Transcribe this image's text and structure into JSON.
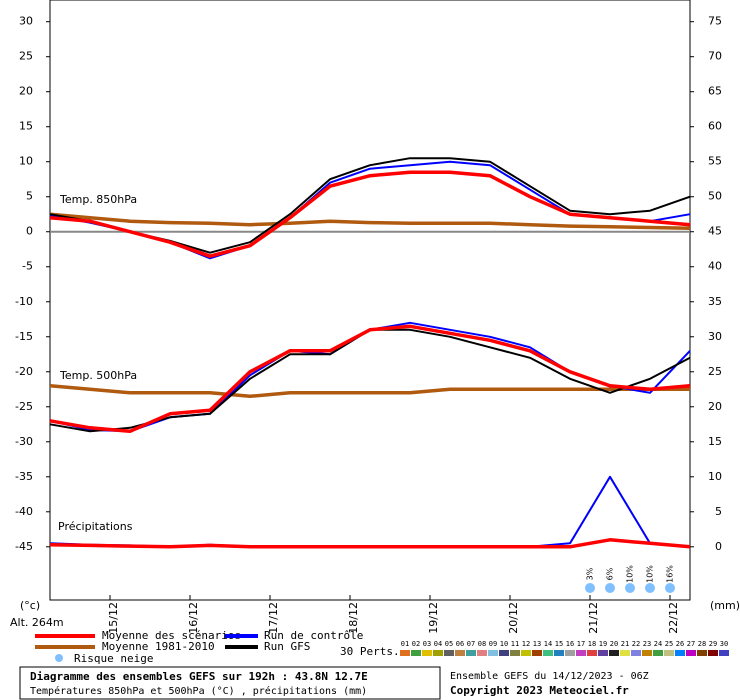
{
  "chart_data": {
    "type": "line",
    "x": [
      0,
      12,
      24,
      36,
      48,
      60,
      72,
      84,
      96,
      108,
      120,
      132,
      144,
      156,
      168,
      180,
      192
    ],
    "xlim": [
      0,
      192
    ],
    "xticks": [
      {
        "value": 18,
        "label": "15/12"
      },
      {
        "value": 42,
        "label": "16/12"
      },
      {
        "value": 66,
        "label": "17/12"
      },
      {
        "value": 90,
        "label": "18/12"
      },
      {
        "value": 114,
        "label": "19/12"
      },
      {
        "value": 138,
        "label": "20/12"
      },
      {
        "value": 162,
        "label": "21/12"
      },
      {
        "value": 186,
        "label": "22/12"
      }
    ],
    "ylim": [
      -52.6,
      33.1
    ],
    "yticks": [
      -45,
      -40,
      -35,
      -30,
      -25,
      -20,
      -15,
      -10,
      -5,
      0,
      5,
      10,
      15,
      20,
      25,
      30
    ],
    "y2lim": [
      -7.6,
      78.1
    ],
    "y2ticks": [
      0,
      5,
      10,
      15,
      20,
      25,
      30,
      35,
      40,
      45,
      50,
      55,
      60,
      65,
      70,
      75
    ],
    "y_label": "(°c)",
    "y2_label": "(mm)",
    "altitude": "Alt. 264m",
    "annotations": [
      "Temp. 850hPa",
      "Temp. 500hPa",
      "Précipitations"
    ],
    "series": [
      {
        "name": "Moyenne des scénarios",
        "color": "#ff0000",
        "t850": [
          2,
          1.5,
          0,
          -1.5,
          -3.5,
          -2,
          2,
          6.5,
          8,
          8.5,
          8.5,
          8,
          5,
          2.5,
          2,
          1.5,
          1
        ],
        "t500": [
          -27,
          -28,
          -28.5,
          -26,
          -25.5,
          -20,
          -17,
          -17,
          -14,
          -13.5,
          -14.5,
          -15.5,
          -17,
          -20,
          -22,
          -22.5,
          -22
        ],
        "precip": [
          0.3,
          0.2,
          0.1,
          0,
          0.2,
          0,
          0,
          0,
          0,
          0,
          0,
          0,
          0,
          0,
          1,
          0.5,
          0
        ]
      },
      {
        "name": "Moyenne 1981-2010",
        "color": "#b05a10",
        "t850": [
          2.5,
          2,
          1.5,
          1.3,
          1.2,
          1,
          1.2,
          1.5,
          1.3,
          1.2,
          1.2,
          1.2,
          1,
          0.8,
          0.7,
          0.6,
          0.5
        ],
        "t500": [
          -22,
          -22.5,
          -23,
          -23,
          -23,
          -23.5,
          -23,
          -23,
          -23,
          -23,
          -22.5,
          -22.5,
          -22.5,
          -22.5,
          -22.5,
          -22.5,
          -22.5
        ]
      },
      {
        "name": "Run de contrôle",
        "color": "#0000ff",
        "t850": [
          2.3,
          1.3,
          0,
          -1.5,
          -3.8,
          -2,
          2,
          7,
          9,
          9.5,
          10,
          9.5,
          6,
          2.5,
          2,
          1.5,
          2.5
        ],
        "t500": [
          -27,
          -28.3,
          -28.5,
          -26.5,
          -26,
          -20.5,
          -17,
          -17.5,
          -14,
          -13,
          -14,
          -15,
          -16.5,
          -20,
          -22,
          -23,
          -17
        ],
        "precip": [
          0.5,
          0.3,
          0.2,
          0,
          0.3,
          0,
          0,
          0,
          0,
          0,
          0,
          0,
          0,
          0.5,
          10,
          0.5,
          0
        ]
      },
      {
        "name": "Run GFS",
        "color": "#000000",
        "t850": [
          2.5,
          1.5,
          0,
          -1.3,
          -3,
          -1.5,
          2.5,
          7.5,
          9.5,
          10.5,
          10.5,
          10,
          6.5,
          3,
          2.5,
          3,
          5
        ],
        "t500": [
          -27.5,
          -28.5,
          -28,
          -26.5,
          -26,
          -21,
          -17.5,
          -17.5,
          -14,
          -14,
          -15,
          -16.5,
          -18,
          -21,
          -23,
          -21,
          -18
        ]
      }
    ],
    "snow": {
      "name": "Risque neige",
      "x": [
        162,
        168,
        174,
        180,
        186
      ],
      "labels": [
        "3%",
        "6%",
        "10%",
        "10%",
        "16%"
      ]
    },
    "perts": {
      "name": "30 Perts.",
      "labels": [
        "01",
        "02",
        "03",
        "04",
        "05",
        "06",
        "07",
        "08",
        "09",
        "10",
        "11",
        "12",
        "13",
        "14",
        "15",
        "16",
        "17",
        "18",
        "19",
        "20",
        "21",
        "22",
        "23",
        "24",
        "25",
        "26",
        "27",
        "28",
        "29",
        "30"
      ],
      "colors": [
        "#e07020",
        "#40a040",
        "#e0c000",
        "#a0a000",
        "#606060",
        "#c08040",
        "#40a0a0",
        "#e08080",
        "#80c0e0",
        "#404080",
        "#808040",
        "#c0c000",
        "#a04000",
        "#40c080",
        "#2080c0",
        "#a0a0a0",
        "#c040c0",
        "#e04040",
        "#6040a0",
        "#202020",
        "#e0e040",
        "#8080e0",
        "#c08000",
        "#40a040",
        "#c0c080",
        "#0080ff",
        "#c000c0",
        "#804000",
        "#800000",
        "#4040c0"
      ]
    },
    "footer": {
      "title": "Diagramme des ensembles GEFS sur 192h : 43.8N 12.7E",
      "subtitle": "Températures 850hPa et 500hPa (°C) , précipitations (mm)",
      "run": "Ensemble GEFS du 14/12/2023 - 06Z",
      "copyright": "Copyright 2023 Meteociel.fr"
    }
  }
}
